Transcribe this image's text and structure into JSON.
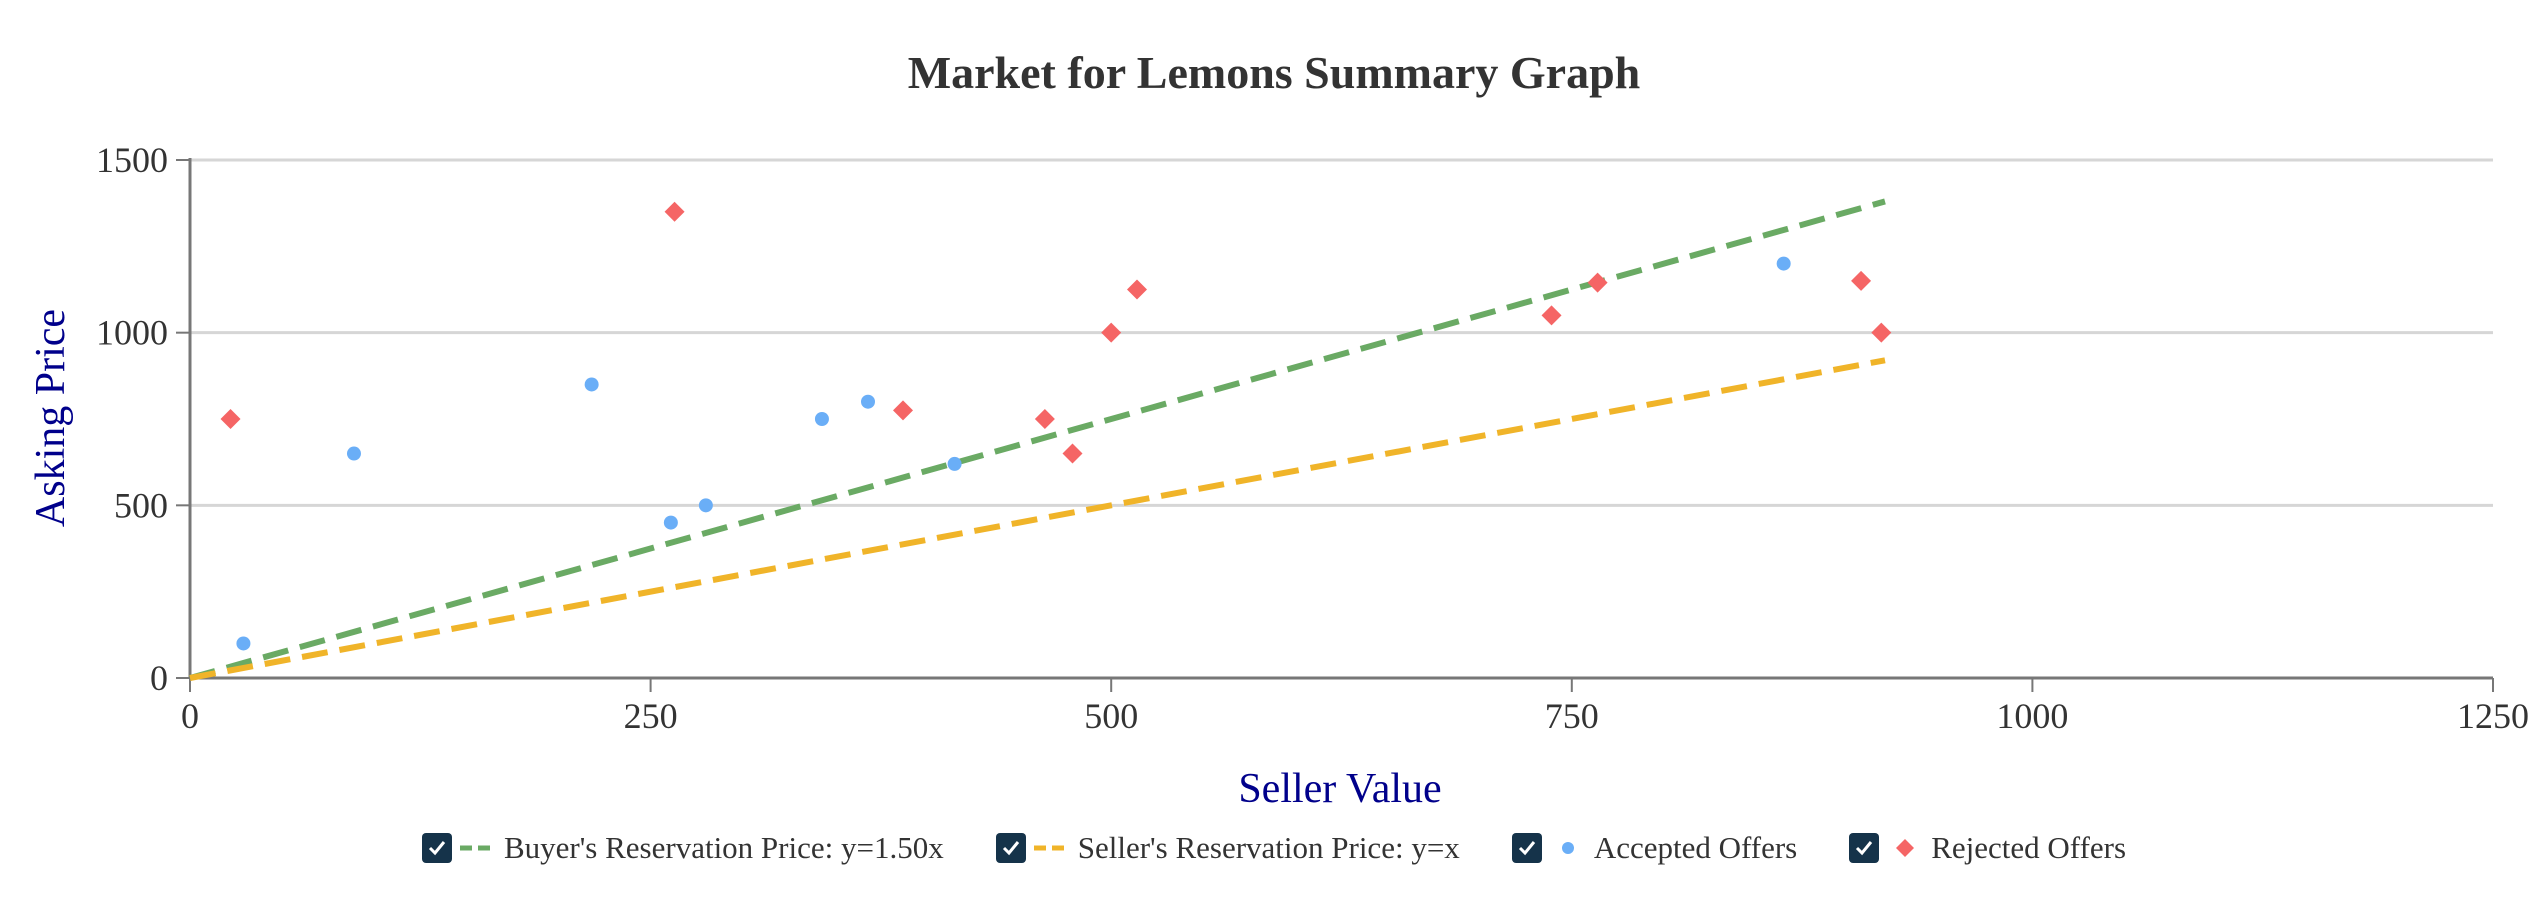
{
  "chart_data": {
    "type": "scatter",
    "title": "Market for Lemons Summary Graph",
    "xlabel": "Seller Value",
    "ylabel": "Asking Price",
    "xlim": [
      0,
      1250
    ],
    "ylim": [
      0,
      1500
    ],
    "x_ticks": [
      "0",
      "250",
      "500",
      "750",
      "1000",
      "1250"
    ],
    "y_ticks": [
      "0",
      "500",
      "1000",
      "1500"
    ],
    "grid": true,
    "legend_position": "bottom",
    "series": [
      {
        "name": "Buyer's Reservation Price: y=1.50x",
        "kind": "line",
        "style": "dashed",
        "color": "#6aaa64",
        "points": [
          [
            0,
            0
          ],
          [
            920,
            1380
          ]
        ]
      },
      {
        "name": "Seller's Reservation Price: y=x",
        "kind": "line",
        "style": "dashed",
        "color": "#f0b429",
        "points": [
          [
            0,
            0
          ],
          [
            920,
            920
          ]
        ]
      },
      {
        "name": "Accepted Offers",
        "kind": "scatter",
        "marker": "circle",
        "color": "#6aaef7",
        "points": [
          [
            29,
            100
          ],
          [
            89,
            650
          ],
          [
            218,
            850
          ],
          [
            261,
            450
          ],
          [
            280,
            500
          ],
          [
            343,
            750
          ],
          [
            368,
            800
          ],
          [
            415,
            620
          ],
          [
            865,
            1200
          ]
        ]
      },
      {
        "name": "Rejected Offers",
        "kind": "scatter",
        "marker": "diamond",
        "color": "#f56565",
        "points": [
          [
            22,
            750
          ],
          [
            263,
            1350
          ],
          [
            387,
            775
          ],
          [
            464,
            750
          ],
          [
            479,
            650
          ],
          [
            500,
            1000
          ],
          [
            514,
            1125
          ],
          [
            739,
            1050
          ],
          [
            764,
            1145
          ],
          [
            907,
            1150
          ],
          [
            918,
            1000
          ]
        ]
      }
    ]
  },
  "legend": {
    "items": [
      {
        "label": "Buyer's Reservation Price: y=1.50x",
        "swatch": "dashed-line",
        "color": "#6aaa64"
      },
      {
        "label": "Seller's Reservation Price: y=x",
        "swatch": "dashed-line",
        "color": "#f0b429"
      },
      {
        "label": "Accepted Offers",
        "swatch": "circle",
        "color": "#6aaef7"
      },
      {
        "label": "Rejected Offers",
        "swatch": "diamond",
        "color": "#f56565"
      }
    ]
  }
}
